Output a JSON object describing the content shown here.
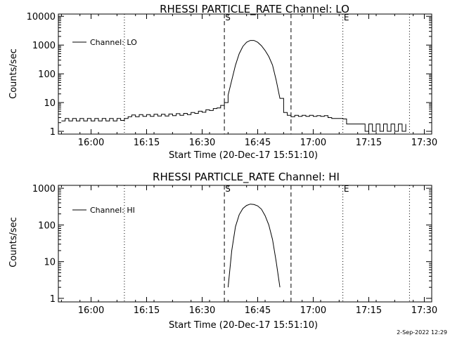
{
  "chart_data": [
    {
      "type": "line",
      "title": "RHESSI PARTICLE_RATE Channel: LO",
      "xlabel": "Start Time (20-Dec-17 15:51:10)",
      "ylabel": "Counts/sec",
      "xscale": "time",
      "yscale": "log",
      "xlim": [
        "15:51:10",
        "17:32:00"
      ],
      "ylim": [
        0.8,
        12000
      ],
      "x_ticks": [
        "16:00",
        "16:15",
        "16:30",
        "16:45",
        "17:00",
        "17:15",
        "17:30"
      ],
      "y_ticks": [
        "1",
        "10",
        "100",
        "1000",
        "10000"
      ],
      "legend": {
        "position": "top-left",
        "entries": [
          "Channel: LO"
        ]
      },
      "vlines": [
        {
          "time": "16:09",
          "style": "dotted",
          "label": ""
        },
        {
          "time": "16:36",
          "style": "dashed",
          "label": "S"
        },
        {
          "time": "16:54",
          "style": "dashed",
          "label": ""
        },
        {
          "time": "17:08",
          "style": "dotted",
          "label": "E"
        },
        {
          "time": "17:26",
          "style": "dotted",
          "label": ""
        }
      ],
      "series": [
        {
          "name": "Channel: LO",
          "points": [
            [
              "15:52",
              2.3
            ],
            [
              "15:53",
              2.8
            ],
            [
              "15:54",
              2.3
            ],
            [
              "15:55",
              2.8
            ],
            [
              "15:56",
              2.3
            ],
            [
              "15:57",
              2.8
            ],
            [
              "15:58",
              2.3
            ],
            [
              "15:59",
              2.8
            ],
            [
              "16:00",
              2.3
            ],
            [
              "16:01",
              2.8
            ],
            [
              "16:02",
              2.3
            ],
            [
              "16:03",
              2.8
            ],
            [
              "16:04",
              2.3
            ],
            [
              "16:05",
              2.8
            ],
            [
              "16:06",
              2.3
            ],
            [
              "16:07",
              2.8
            ],
            [
              "16:08",
              2.4
            ],
            [
              "16:09",
              2.8
            ],
            [
              "16:10",
              3.2
            ],
            [
              "16:11",
              3.7
            ],
            [
              "16:12",
              3.2
            ],
            [
              "16:13",
              3.8
            ],
            [
              "16:14",
              3.3
            ],
            [
              "16:15",
              3.8
            ],
            [
              "16:16",
              3.3
            ],
            [
              "16:17",
              3.9
            ],
            [
              "16:18",
              3.4
            ],
            [
              "16:19",
              3.9
            ],
            [
              "16:20",
              3.4
            ],
            [
              "16:21",
              4.0
            ],
            [
              "16:22",
              3.5
            ],
            [
              "16:23",
              4.1
            ],
            [
              "16:24",
              3.6
            ],
            [
              "16:25",
              4.2
            ],
            [
              "16:26",
              3.8
            ],
            [
              "16:27",
              4.5
            ],
            [
              "16:28",
              4.2
            ],
            [
              "16:29",
              5.0
            ],
            [
              "16:30",
              4.6
            ],
            [
              "16:31",
              5.6
            ],
            [
              "16:32",
              5.3
            ],
            [
              "16:33",
              6.2
            ],
            [
              "16:34",
              6.5
            ],
            [
              "16:35",
              8.0
            ],
            [
              "16:36",
              10
            ],
            [
              "16:37",
              18
            ],
            [
              "16:38",
              60
            ],
            [
              "16:39",
              200
            ],
            [
              "16:40",
              500
            ],
            [
              "16:41",
              900
            ],
            [
              "16:42",
              1250
            ],
            [
              "16:43",
              1450
            ],
            [
              "16:44",
              1450
            ],
            [
              "16:45",
              1250
            ],
            [
              "16:46",
              950
            ],
            [
              "16:47",
              650
            ],
            [
              "16:48",
              400
            ],
            [
              "16:49",
              200
            ],
            [
              "16:50",
              60
            ],
            [
              "16:51",
              14
            ],
            [
              "16:52",
              4.5
            ],
            [
              "16:53",
              3.6
            ],
            [
              "16:54",
              3.2
            ],
            [
              "16:55",
              3.6
            ],
            [
              "16:56",
              3.3
            ],
            [
              "16:57",
              3.6
            ],
            [
              "16:58",
              3.3
            ],
            [
              "16:59",
              3.6
            ],
            [
              "17:00",
              3.3
            ],
            [
              "17:01",
              3.5
            ],
            [
              "17:02",
              3.3
            ],
            [
              "17:03",
              3.5
            ],
            [
              "17:04",
              3.0
            ],
            [
              "17:05",
              2.8
            ],
            [
              "17:06",
              2.8
            ],
            [
              "17:07",
              2.8
            ],
            [
              "17:08",
              2.7
            ],
            [
              "17:09",
              1.8
            ],
            [
              "17:10",
              1.8
            ],
            [
              "17:11",
              1.8
            ],
            [
              "17:12",
              1.8
            ],
            [
              "17:13",
              1.8
            ],
            [
              "17:14",
              1.0
            ],
            [
              "17:15",
              1.8
            ],
            [
              "17:16",
              1.0
            ],
            [
              "17:17",
              1.8
            ],
            [
              "17:18",
              1.0
            ],
            [
              "17:19",
              1.8
            ],
            [
              "17:20",
              1.0
            ],
            [
              "17:21",
              1.8
            ],
            [
              "17:22",
              1.0
            ],
            [
              "17:23",
              1.8
            ],
            [
              "17:24",
              1.0
            ],
            [
              "17:25",
              1.8
            ]
          ]
        }
      ]
    },
    {
      "type": "line",
      "title": "RHESSI PARTICLE_RATE Channel: HI",
      "xlabel": "Start Time (20-Dec-17 15:51:10)",
      "ylabel": "Counts/sec",
      "xscale": "time",
      "yscale": "log",
      "xlim": [
        "15:51:10",
        "17:32:00"
      ],
      "ylim": [
        0.8,
        1200
      ],
      "x_ticks": [
        "16:00",
        "16:15",
        "16:30",
        "16:45",
        "17:00",
        "17:15",
        "17:30"
      ],
      "y_ticks": [
        "1",
        "10",
        "100",
        "1000"
      ],
      "legend": {
        "position": "top-left",
        "entries": [
          "Channel: HI"
        ]
      },
      "vlines": [
        {
          "time": "16:09",
          "style": "dotted",
          "label": ""
        },
        {
          "time": "16:36",
          "style": "dashed",
          "label": "S"
        },
        {
          "time": "16:54",
          "style": "dashed",
          "label": ""
        },
        {
          "time": "17:08",
          "style": "dotted",
          "label": "E"
        },
        {
          "time": "17:26",
          "style": "dotted",
          "label": ""
        }
      ],
      "series": [
        {
          "name": "Channel: HI",
          "points": [
            [
              "16:37",
              2.0
            ],
            [
              "16:38",
              20
            ],
            [
              "16:39",
              90
            ],
            [
              "16:40",
              190
            ],
            [
              "16:41",
              280
            ],
            [
              "16:42",
              340
            ],
            [
              "16:43",
              370
            ],
            [
              "16:44",
              360
            ],
            [
              "16:45",
              330
            ],
            [
              "16:46",
              270
            ],
            [
              "16:47",
              180
            ],
            [
              "16:48",
              100
            ],
            [
              "16:49",
              40
            ],
            [
              "16:50",
              10
            ],
            [
              "16:51",
              2.0
            ]
          ]
        }
      ]
    }
  ],
  "footer_date": "2-Sep-2022 12:29"
}
